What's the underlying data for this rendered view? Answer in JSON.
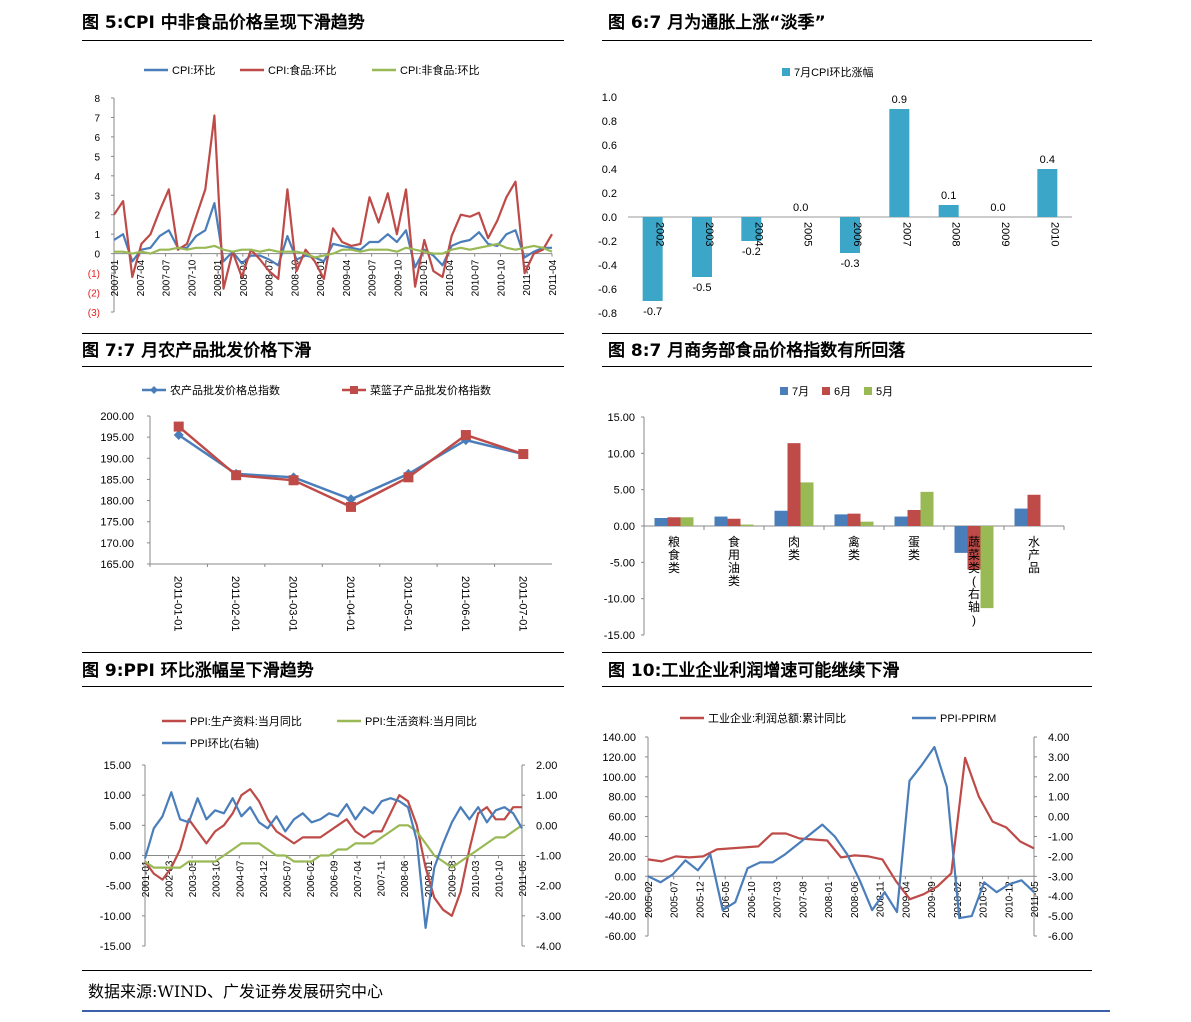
{
  "figures": [
    {
      "title": "图 5:CPI 中非食品价格呈现下滑趋势"
    },
    {
      "title": "图 6:7 月为通胀上涨“淡季”"
    },
    {
      "title": "图 7:7 月农产品批发价格下滑"
    },
    {
      "title": "图 8:7 月商务部食品价格指数有所回落"
    },
    {
      "title": "图 9:PPI 环比涨幅呈下滑趋势"
    },
    {
      "title": "图 10:工业企业利润增速可能继续下滑"
    }
  ],
  "source": "数据来源:WIND、广发证券发展研究中心",
  "colors": {
    "blue": "#4a7ebb",
    "red": "#be4b48",
    "green": "#98b954",
    "teal": "#3ba6c8",
    "neg_label": "#e02020",
    "footer": "#3b5fa8"
  },
  "chart_data": [
    {
      "id": "fig5",
      "type": "line",
      "legend_position": "top",
      "y_tick_labels": [
        "(3)",
        "(2)",
        "(1)",
        "0",
        "1",
        "2",
        "3",
        "4",
        "5",
        "6",
        "7",
        "8"
      ],
      "ylim": [
        -3,
        8
      ],
      "x_tick_labels": [
        "2007-01",
        "2007-04",
        "2007-07",
        "2007-10",
        "2008-01",
        "2008-04",
        "2008-07",
        "2008-10",
        "2009-01",
        "2009-04",
        "2009-07",
        "2009-10",
        "2010-01",
        "2010-04",
        "2010-07",
        "2010-10",
        "2011-01",
        "2011-04"
      ],
      "series": [
        {
          "name": "CPI:环比",
          "color": "#4a7ebb",
          "values": [
            0.7,
            1.0,
            -0.4,
            0.2,
            0.3,
            0.9,
            1.2,
            0.3,
            0.3,
            0.9,
            1.2,
            2.6,
            -0.4,
            0.1,
            -0.5,
            -0.1,
            -0.1,
            -0.3,
            -0.6,
            0.9,
            -0.3,
            -0.1,
            -0.2,
            -0.4,
            0.5,
            0.4,
            0.3,
            0.2,
            0.6,
            0.6,
            1.0,
            0.6,
            1.2,
            -0.7,
            0.2,
            -0.1,
            -0.6,
            0.4,
            0.6,
            0.7,
            1.1,
            0.5,
            0.4,
            1.0,
            1.2,
            -0.2,
            0.1,
            0.3,
            0.3
          ]
        },
        {
          "name": "CPI:食品:环比",
          "color": "#be4b48",
          "values": [
            2.0,
            2.7,
            -1.2,
            0.5,
            1.0,
            2.2,
            3.3,
            0.2,
            0.5,
            1.9,
            3.3,
            7.1,
            -1.8,
            0.1,
            -1.2,
            0.2,
            -0.3,
            -0.9,
            -1.3,
            3.3,
            -0.9,
            0.2,
            -0.4,
            -1.3,
            1.3,
            0.6,
            0.4,
            0.5,
            2.9,
            1.6,
            3.1,
            1.0,
            3.3,
            -1.7,
            0.7,
            -0.9,
            -1.2,
            0.9,
            2.0,
            1.9,
            2.1,
            0.8,
            1.7,
            2.9,
            3.7,
            -1.0,
            0.0,
            0.2,
            1.0
          ]
        },
        {
          "name": "CPI:非食品:环比",
          "color": "#98b954",
          "values": [
            0.1,
            0.1,
            0.0,
            0.1,
            0.0,
            0.2,
            0.2,
            0.3,
            0.2,
            0.3,
            0.3,
            0.4,
            0.2,
            0.1,
            0.2,
            0.2,
            0.1,
            0.2,
            0.1,
            0.1,
            0.1,
            0.0,
            -0.2,
            -0.1,
            0.0,
            0.2,
            0.2,
            0.1,
            0.2,
            0.2,
            0.2,
            0.1,
            0.3,
            0.2,
            0.1,
            0.0,
            0.0,
            0.2,
            0.3,
            0.2,
            0.3,
            0.4,
            0.5,
            0.3,
            0.2,
            0.3,
            0.4,
            0.3,
            0.1
          ]
        }
      ]
    },
    {
      "id": "fig6",
      "type": "bar",
      "legend_position": "top",
      "series_name": "7月CPI环比涨幅",
      "color": "#3ba6c8",
      "categories": [
        "2002",
        "2003",
        "2004",
        "2005",
        "2006",
        "2007",
        "2008",
        "2009",
        "2010"
      ],
      "values": [
        -0.7,
        -0.5,
        -0.2,
        0.0,
        -0.3,
        0.9,
        0.1,
        0.0,
        0.4
      ],
      "data_labels": [
        "-0.7",
        "-0.5",
        "-0.2",
        "0.0",
        "-0.3",
        "0.9",
        "0.1",
        "0.0",
        "0.4"
      ],
      "y_tick_labels": [
        "-0.8",
        "-0.6",
        "-0.4",
        "-0.2",
        "0.0",
        "0.2",
        "0.4",
        "0.6",
        "0.8",
        "1.0"
      ],
      "ylim": [
        -0.8,
        1.0
      ]
    },
    {
      "id": "fig7",
      "type": "line",
      "legend_position": "top",
      "categories": [
        "2011-01-01",
        "2011-02-01",
        "2011-03-01",
        "2011-04-01",
        "2011-05-01",
        "2011-06-01",
        "2011-07-01"
      ],
      "y_tick_labels": [
        "165.00",
        "170.00",
        "175.00",
        "180.00",
        "185.00",
        "190.00",
        "195.00",
        "200.00"
      ],
      "ylim": [
        165,
        200
      ],
      "series": [
        {
          "name": "农产品批发价格总指数",
          "color": "#4a7ebb",
          "marker": "diamond",
          "values": [
            195.5,
            186.3,
            185.5,
            180.3,
            186.3,
            194.3,
            191.0
          ]
        },
        {
          "name": "菜篮子产品批发价格指数",
          "color": "#be4b48",
          "marker": "square",
          "values": [
            197.5,
            186.0,
            184.8,
            178.5,
            185.5,
            195.5,
            191.0
          ]
        }
      ]
    },
    {
      "id": "fig8",
      "type": "bar",
      "legend_position": "top",
      "categories": [
        "粮食类",
        "食用油类",
        "肉类",
        "禽类",
        "蛋类",
        "蔬菜类(右轴)",
        "水产品"
      ],
      "y_tick_labels": [
        "-15.00",
        "-10.00",
        "-5.00",
        "0.00",
        "5.00",
        "10.00",
        "15.00"
      ],
      "ylim": [
        -15,
        15
      ],
      "series": [
        {
          "name": "7月",
          "color": "#4a7ebb",
          "values": [
            1.1,
            1.3,
            2.1,
            1.6,
            1.3,
            -3.7,
            2.4
          ]
        },
        {
          "name": "6月",
          "color": "#be4b48",
          "values": [
            1.2,
            1.0,
            11.4,
            1.7,
            2.2,
            -6.0,
            4.3
          ]
        },
        {
          "name": "5月",
          "color": "#98b954",
          "values": [
            1.2,
            0.2,
            6.0,
            0.6,
            4.7,
            -11.3,
            null
          ]
        }
      ]
    },
    {
      "id": "fig9",
      "type": "line",
      "legend_position": "top",
      "left_tick_labels": [
        "-15.00",
        "-10.00",
        "-5.00",
        "0.00",
        "5.00",
        "10.00",
        "15.00"
      ],
      "left_ylim": [
        -15,
        15
      ],
      "right_tick_labels": [
        "-4.00",
        "-3.00",
        "-2.00",
        "-1.00",
        "0.00",
        "1.00",
        "2.00"
      ],
      "right_ylim": [
        -4,
        2
      ],
      "x_tick_labels": [
        "2001-01",
        "2002-03",
        "2003-05",
        "2003-10",
        "2004-07",
        "2004-12",
        "2005-07",
        "2006-02",
        "2006-09",
        "2007-04",
        "2007-11",
        "2008-06",
        "2009-01",
        "2009-08",
        "2010-03",
        "2010-10",
        "2011-05"
      ],
      "series": [
        {
          "name": "PPI:生产资料:当月同比",
          "color": "#be4b48",
          "axis": "left",
          "values": [
            -1,
            -3,
            -4,
            -2,
            1,
            6,
            4,
            2,
            4,
            5,
            7,
            10,
            11,
            9,
            6,
            4,
            3,
            2,
            3,
            3,
            3,
            4,
            5,
            6,
            4,
            3,
            4,
            4,
            7,
            10,
            9,
            5,
            -2,
            -7,
            -9,
            -10,
            -6,
            1,
            7,
            8,
            6,
            6,
            8,
            8
          ]
        },
        {
          "name": "PPI:生活资料:当月同比",
          "color": "#98b954",
          "axis": "left",
          "values": [
            -1,
            -2,
            -2,
            -2,
            -2,
            -1,
            -1,
            -1,
            -1,
            0,
            1,
            2,
            2,
            2,
            1,
            0,
            0,
            -1,
            -1,
            -1,
            0,
            0,
            1,
            1,
            2,
            2,
            2,
            3,
            4,
            5,
            5,
            4,
            2,
            0,
            -1,
            -2,
            -1,
            0,
            1,
            2,
            3,
            3,
            4,
            5
          ]
        },
        {
          "name": "PPI环比(右轴)",
          "color": "#4a7ebb",
          "axis": "right",
          "values": [
            -1.1,
            -0.1,
            0.3,
            1.1,
            0.2,
            0.1,
            0.9,
            0.2,
            0.5,
            0.4,
            0.9,
            0.3,
            0.6,
            0.1,
            -0.1,
            0.3,
            -0.2,
            0.2,
            0.4,
            0.1,
            0.2,
            0.4,
            0.3,
            0.7,
            0.2,
            0.6,
            0.4,
            0.8,
            0.9,
            0.8,
            0.6,
            -0.5,
            -3.4,
            -1.4,
            -0.6,
            0.1,
            0.6,
            0.2,
            0.6,
            0.1,
            0.5,
            0.6,
            0.4,
            -0.1
          ]
        }
      ]
    },
    {
      "id": "fig10",
      "type": "line",
      "legend_position": "top",
      "left_tick_labels": [
        "-60.00",
        "-40.00",
        "-20.00",
        "0.00",
        "20.00",
        "40.00",
        "60.00",
        "80.00",
        "100.00",
        "120.00",
        "140.00"
      ],
      "left_ylim": [
        -60,
        140
      ],
      "right_tick_labels": [
        "-6.00",
        "-5.00",
        "-4.00",
        "-3.00",
        "-2.00",
        "-1.00",
        "0.00",
        "1.00",
        "2.00",
        "3.00",
        "4.00"
      ],
      "right_ylim": [
        -6,
        4
      ],
      "x_tick_labels": [
        "2005-02",
        "2005-07",
        "2005-12",
        "2006-05",
        "2006-10",
        "2007-03",
        "2007-08",
        "2008-01",
        "2008-06",
        "2008-11",
        "2009-04",
        "2009-09",
        "2010-02",
        "2010-07",
        "2010-12",
        "2011-05"
      ],
      "series": [
        {
          "name": "工业企业:利润总额:累计同比",
          "color": "#be4b48",
          "values": [
            17,
            15,
            20,
            19,
            20,
            27,
            28,
            29,
            30,
            43,
            43,
            38,
            37,
            36,
            19,
            21,
            20,
            17,
            -5,
            -23,
            -18,
            -10,
            3,
            119,
            80,
            55,
            49,
            35,
            28
          ]
        },
        {
          "name": "PPI-PPIRM",
          "color": "#4a7ebb",
          "values": [
            -3.0,
            -3.3,
            -2.9,
            -2.2,
            -2.7,
            -1.9,
            -4.7,
            -4.3,
            -2.6,
            -2.3,
            -2.3,
            -1.9,
            -1.4,
            -0.9,
            -0.4,
            -1.0,
            -1.9,
            -3.2,
            -4.7,
            -3.8,
            -4.8,
            1.8,
            2.6,
            3.5,
            1.5,
            -5.1,
            -5.0,
            -3.3,
            -3.8,
            -3.4,
            -3.2,
            -3.8
          ]
        }
      ]
    }
  ]
}
